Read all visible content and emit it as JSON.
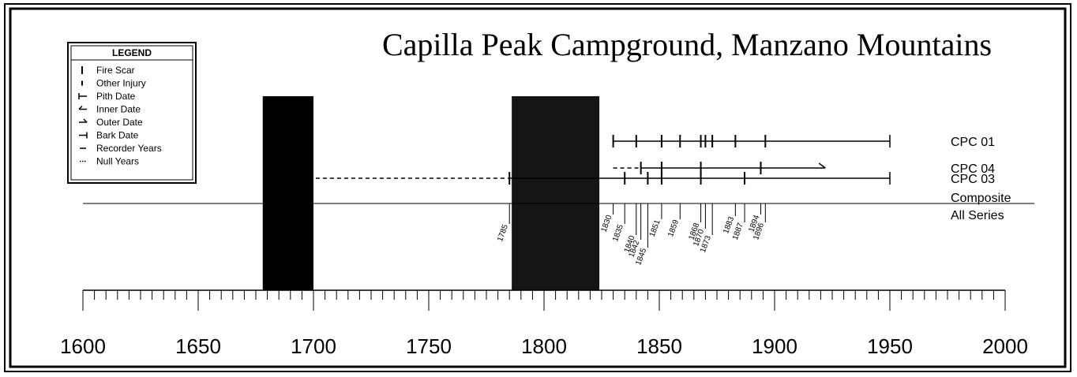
{
  "chart_data": {
    "type": "fire-history",
    "title": "Capilla Peak Campground, Manzano Mountains",
    "legend": {
      "title": "LEGEND",
      "items": [
        "Fire Scar",
        "Other Injury",
        "Pith Date",
        "Inner Date",
        "Outer Date",
        "Bark Date",
        "Recorder Years",
        "Null Years"
      ]
    },
    "xlim": [
      1600,
      2000
    ],
    "xticks": [
      1600,
      1650,
      1700,
      1750,
      1800,
      1850,
      1900,
      1950,
      2000
    ],
    "minor_xticks": [
      1605,
      1610,
      1615,
      1620,
      1625,
      1630,
      1635,
      1640,
      1645,
      1655,
      1660,
      1665,
      1670,
      1675,
      1680,
      1685,
      1690,
      1695,
      1705,
      1710,
      1715,
      1720,
      1725,
      1730,
      1735,
      1740,
      1745,
      1755,
      1760,
      1765,
      1770,
      1775,
      1780,
      1785,
      1790,
      1795,
      1805,
      1810,
      1815,
      1820,
      1825,
      1830,
      1835,
      1840,
      1845,
      1855,
      1860,
      1865,
      1870,
      1875,
      1880,
      1885,
      1890,
      1895,
      1905,
      1910,
      1915,
      1920,
      1925,
      1930,
      1935,
      1940,
      1945,
      1955,
      1960,
      1965,
      1970,
      1975,
      1980,
      1985,
      1990,
      1995
    ],
    "periods": [
      [
        1678,
        1700
      ],
      [
        1786,
        1824
      ]
    ],
    "series": [
      {
        "name": "CPC 01",
        "recorder_years": [
          1830,
          1950
        ],
        "end": "bark",
        "scars": [
          1830,
          1840,
          1851,
          1859,
          1868,
          1870,
          1873,
          1883,
          1896
        ]
      },
      {
        "name": "CPC 04",
        "null_years": [
          1830,
          1842
        ],
        "recorder_years": [
          1842,
          1922
        ],
        "end": "outer",
        "scars": [
          1842,
          1851,
          1868,
          1894
        ]
      },
      {
        "name": "CPC 03",
        "null_years": [
          1701,
          1785
        ],
        "recorder_years": [
          1785,
          1950
        ],
        "end": "bark",
        "scars": [
          1785,
          1835,
          1845,
          1851,
          1868,
          1887
        ]
      }
    ],
    "composite": {
      "label": [
        "Composite",
        "All Series"
      ],
      "years": [
        1785,
        1830,
        1835,
        1840,
        1842,
        1845,
        1851,
        1859,
        1868,
        1870,
        1873,
        1883,
        1887,
        1894,
        1896
      ]
    }
  }
}
